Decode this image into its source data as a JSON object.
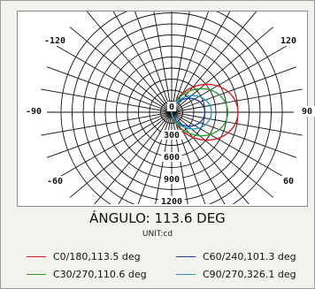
{
  "chart_data": {
    "type": "polar",
    "title": "ÁNGULO: 113.6 DEG",
    "unit": "UNIT:cd",
    "angle_tick_labels": [
      "-120",
      "120",
      "-90",
      "90",
      "-60",
      "60"
    ],
    "radial_tick_labels": [
      "0",
      "300",
      "600",
      "900",
      "1200"
    ],
    "radial_ticks": [
      0,
      300,
      600,
      900,
      1200
    ],
    "rmax": 1500,
    "grid": true,
    "series": [
      {
        "name": "C0/180,113.5 deg",
        "color": "#d81e1e",
        "peak": 900
      },
      {
        "name": "C60/240,101.3 deg",
        "color": "#1f3fa8",
        "peak": 450
      },
      {
        "name": "C30/270,110.6 deg",
        "color": "#2aa02a",
        "peak": 760
      },
      {
        "name": "C90/270,326.1 deg",
        "color": "#1e9bc8",
        "peak": 540
      }
    ]
  }
}
